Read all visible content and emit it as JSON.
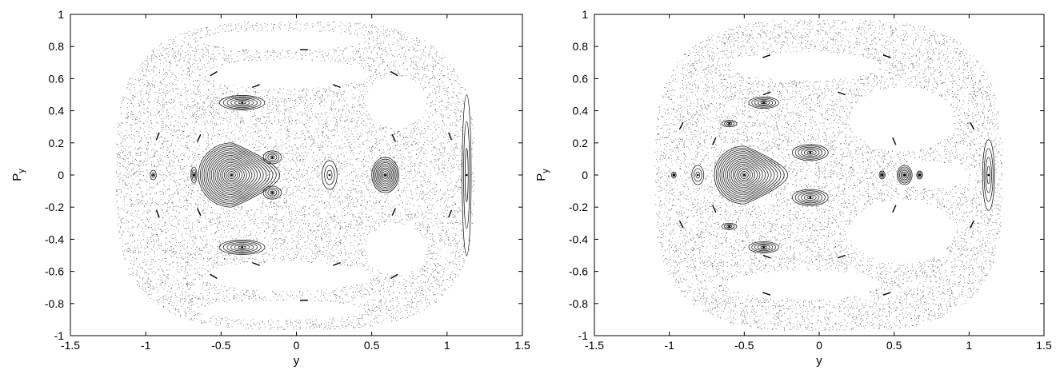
{
  "chart_data": [
    {
      "type": "scatter",
      "title": "",
      "xlabel": "y",
      "ylabel": {
        "main": "P",
        "sub": "y"
      },
      "xlim": [
        -1.5,
        1.5
      ],
      "ylim": [
        -1,
        1
      ],
      "xticks": [
        -1.5,
        -1,
        -0.5,
        0,
        0.5,
        1,
        1.5
      ],
      "xtick_labels": [
        "-1.5",
        "-1",
        "-0.5",
        "0",
        "0.5",
        "1",
        "1.5"
      ],
      "yticks": [
        -1,
        -0.8,
        -0.6,
        -0.4,
        -0.2,
        0,
        0.2,
        0.4,
        0.6,
        0.8,
        1
      ],
      "ytick_labels": [
        "-1",
        "-0.8",
        "-0.6",
        "-0.4",
        "-0.2",
        "0",
        "0.2",
        "0.4",
        "0.6",
        "0.8",
        "1"
      ],
      "grid": false,
      "point_color": "#000000",
      "chaotic_sea": {
        "x_range": [
          -1.2,
          1.18
        ],
        "py_max": 0.96,
        "approx_points": 9000
      },
      "empty_regions": [
        {
          "center": [
            -0.06,
            0.63
          ],
          "radii": [
            0.55,
            0.09
          ]
        },
        {
          "center": [
            -0.06,
            -0.63
          ],
          "radii": [
            0.55,
            0.09
          ]
        },
        {
          "center": [
            0.66,
            0.46
          ],
          "radii": [
            0.2,
            0.16
          ]
        },
        {
          "center": [
            0.66,
            -0.46
          ],
          "radii": [
            0.2,
            0.16
          ]
        },
        {
          "center": [
            -0.1,
            0.84
          ],
          "radii": [
            0.55,
            0.06
          ]
        },
        {
          "center": [
            -0.1,
            -0.84
          ],
          "radii": [
            0.55,
            0.06
          ]
        }
      ],
      "islands": [
        {
          "center": [
            -0.43,
            0.0
          ],
          "radii": [
            0.22,
            0.2
          ],
          "rings": 18,
          "shape": "teardrop"
        },
        {
          "center": [
            0.59,
            0.0
          ],
          "radii": [
            0.09,
            0.11
          ],
          "rings": 10
        },
        {
          "center": [
            -0.36,
            0.45
          ],
          "radii": [
            0.15,
            0.045
          ],
          "rings": 6
        },
        {
          "center": [
            -0.36,
            -0.45
          ],
          "radii": [
            0.15,
            0.045
          ],
          "rings": 6
        },
        {
          "center": [
            -0.16,
            0.11
          ],
          "radii": [
            0.06,
            0.04
          ],
          "rings": 4
        },
        {
          "center": [
            -0.16,
            -0.11
          ],
          "radii": [
            0.06,
            0.04
          ],
          "rings": 4
        },
        {
          "center": [
            -0.68,
            0.0
          ],
          "radii": [
            0.02,
            0.05
          ],
          "rings": 3
        },
        {
          "center": [
            -0.95,
            0.0
          ],
          "radii": [
            0.02,
            0.03
          ],
          "rings": 2
        },
        {
          "center": [
            0.22,
            0.0
          ],
          "radii": [
            0.05,
            0.09
          ],
          "rings": 3
        },
        {
          "center": [
            1.13,
            0.0
          ],
          "radii": [
            0.03,
            0.5
          ],
          "rings": 3
        }
      ],
      "chains": [
        {
          "cx": 0.05,
          "rx": 1.02,
          "ry": 0.78,
          "segments": 10
        },
        {
          "cx": 0.0,
          "rx": 0.7,
          "ry": 0.6,
          "segments": 8
        }
      ]
    },
    {
      "type": "scatter",
      "title": "",
      "xlabel": "y",
      "ylabel": {
        "main": "P",
        "sub": "y"
      },
      "xlim": [
        -1.5,
        1.5
      ],
      "ylim": [
        -1,
        1
      ],
      "xticks": [
        -1.5,
        -1,
        -0.5,
        0,
        0.5,
        1,
        1.5
      ],
      "xtick_labels": [
        "-1.5",
        "-1",
        "-0.5",
        "0",
        "0.5",
        "1",
        "1.5"
      ],
      "yticks": [
        -1,
        -0.8,
        -0.6,
        -0.4,
        -0.2,
        0,
        0.2,
        0.4,
        0.6,
        0.8,
        1
      ],
      "ytick_labels": [
        "-1",
        "-0.8",
        "-0.6",
        "-0.4",
        "-0.2",
        "0",
        "0.2",
        "0.4",
        "0.6",
        "0.8",
        "1"
      ],
      "grid": false,
      "point_color": "#000000",
      "chaotic_sea": {
        "x_range": [
          -1.1,
          1.22
        ],
        "py_max": 0.97,
        "approx_points": 9000
      },
      "empty_regions": [
        {
          "center": [
            -0.1,
            0.68
          ],
          "radii": [
            0.5,
            0.09
          ]
        },
        {
          "center": [
            -0.1,
            -0.68
          ],
          "radii": [
            0.5,
            0.09
          ]
        },
        {
          "center": [
            0.55,
            0.35
          ],
          "radii": [
            0.35,
            0.2
          ]
        },
        {
          "center": [
            0.55,
            -0.35
          ],
          "radii": [
            0.35,
            0.2
          ]
        },
        {
          "center": [
            0.75,
            0.0
          ],
          "radii": [
            0.25,
            0.08
          ]
        }
      ],
      "islands": [
        {
          "center": [
            -0.5,
            0.0
          ],
          "radii": [
            0.2,
            0.18
          ],
          "rings": 16,
          "shape": "teardrop"
        },
        {
          "center": [
            -0.06,
            0.14
          ],
          "radii": [
            0.12,
            0.05
          ],
          "rings": 6
        },
        {
          "center": [
            -0.06,
            -0.14
          ],
          "radii": [
            0.12,
            0.05
          ],
          "rings": 6
        },
        {
          "center": [
            -0.37,
            0.45
          ],
          "radii": [
            0.1,
            0.035
          ],
          "rings": 5
        },
        {
          "center": [
            -0.37,
            -0.45
          ],
          "radii": [
            0.1,
            0.035
          ],
          "rings": 5
        },
        {
          "center": [
            0.57,
            0.0
          ],
          "radii": [
            0.05,
            0.06
          ],
          "rings": 6
        },
        {
          "center": [
            0.42,
            0.0
          ],
          "radii": [
            0.02,
            0.025
          ],
          "rings": 3
        },
        {
          "center": [
            0.67,
            0.0
          ],
          "radii": [
            0.02,
            0.025
          ],
          "rings": 3
        },
        {
          "center": [
            -0.97,
            0.0
          ],
          "radii": [
            0.015,
            0.02
          ],
          "rings": 2
        },
        {
          "center": [
            -0.81,
            0.0
          ],
          "radii": [
            0.04,
            0.06
          ],
          "rings": 3
        },
        {
          "center": [
            1.13,
            0.0
          ],
          "radii": [
            0.04,
            0.22
          ],
          "rings": 4
        },
        {
          "center": [
            -0.6,
            0.32
          ],
          "radii": [
            0.05,
            0.02
          ],
          "rings": 3
        },
        {
          "center": [
            -0.6,
            -0.32
          ],
          "radii": [
            0.05,
            0.02
          ],
          "rings": 3
        }
      ],
      "chains": [
        {
          "cx": 0.05,
          "rx": 1.05,
          "ry": 0.8,
          "segments": 8
        },
        {
          "cx": -0.1,
          "rx": 0.65,
          "ry": 0.55,
          "segments": 8
        }
      ]
    }
  ]
}
